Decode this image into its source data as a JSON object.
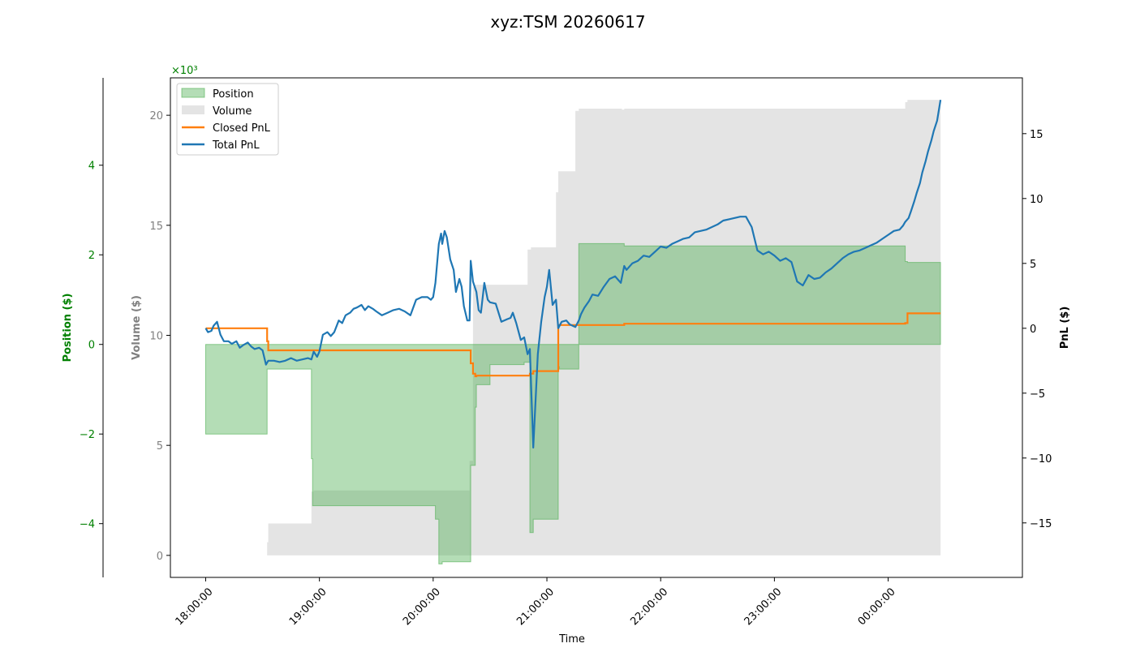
{
  "chart_data": {
    "type": "area",
    "title": "xyz:TSM 20260617",
    "xlabel": "Time",
    "x_ticks": [
      "18:00:00",
      "19:00:00",
      "20:00:00",
      "21:00:00",
      "22:00:00",
      "23:00:00",
      "00:00:00"
    ],
    "x_tick_hours": [
      18,
      19,
      20,
      21,
      22,
      23,
      24
    ],
    "x_range_hours": [
      17.69,
      25.18
    ],
    "axes": {
      "position": {
        "label": "Position ($)",
        "multiplier": "×10³",
        "ylim": [
          -5.2,
          5.95
        ],
        "ticks": [
          -4,
          -2,
          0,
          2,
          4
        ],
        "tick_labels": [
          "−4",
          "−2",
          "0",
          "2",
          "4"
        ],
        "color": "#008000"
      },
      "volume": {
        "label": "Volume ($)",
        "ylim": [
          -1,
          21.7
        ],
        "ticks": [
          0,
          5,
          10,
          15,
          20
        ],
        "tick_labels": [
          "0",
          "5",
          "10",
          "15",
          "20"
        ],
        "color": "#808080"
      },
      "pnl": {
        "label": "PnL ($)",
        "ylim": [
          -19.2,
          19.3
        ],
        "ticks": [
          -15,
          -10,
          -5,
          0,
          5,
          10,
          15
        ],
        "tick_labels": [
          "−15",
          "−10",
          "−5",
          "0",
          "5",
          "10",
          "15"
        ],
        "color": "#000000"
      }
    },
    "legend": {
      "placement": "upper-left",
      "entries": [
        "Position",
        "Volume",
        "Closed PnL",
        "Total PnL"
      ]
    },
    "series": [
      {
        "name": "Position",
        "axis": "position",
        "kind": "area",
        "color": "#4caf50",
        "x_hours": [
          18.0,
          18.54,
          18.54,
          18.93,
          18.93,
          18.94,
          18.94,
          20.02,
          20.02,
          20.05,
          20.05,
          20.08,
          20.08,
          20.33,
          20.33,
          20.37,
          20.37,
          20.38,
          20.38,
          20.5,
          20.5,
          20.8,
          20.8,
          20.85,
          20.85,
          20.88,
          20.88,
          21.1,
          21.1,
          21.11,
          21.11,
          21.28,
          21.28,
          21.68,
          21.68,
          24.15,
          24.15,
          24.17,
          24.17,
          24.46
        ],
        "y": [
          -2.0,
          -2.0,
          -0.55,
          -0.55,
          -2.55,
          -2.55,
          -3.6,
          -3.6,
          -3.9,
          -3.9,
          -4.9,
          -4.9,
          -4.85,
          -4.85,
          -2.7,
          -2.7,
          -1.4,
          -1.4,
          -0.9,
          -0.9,
          -0.45,
          -0.45,
          -0.4,
          -0.4,
          -4.2,
          -4.2,
          -3.9,
          -3.9,
          -0.5,
          -0.5,
          -0.55,
          -0.55,
          2.25,
          2.25,
          2.2,
          2.2,
          1.85,
          1.85,
          1.83,
          1.83
        ]
      },
      {
        "name": "Volume",
        "axis": "volume",
        "kind": "area",
        "color": "#d8d8d8",
        "x_hours": [
          18.0,
          18.54,
          18.54,
          18.55,
          18.55,
          18.93,
          18.93,
          18.95,
          18.95,
          20.32,
          20.32,
          20.35,
          20.35,
          20.37,
          20.37,
          20.83,
          20.83,
          20.86,
          20.86,
          21.08,
          21.08,
          21.1,
          21.1,
          21.25,
          21.25,
          21.28,
          21.28,
          21.66,
          21.66,
          21.68,
          21.68,
          24.15,
          24.15,
          24.17,
          24.17,
          24.46
        ],
        "y": [
          0,
          0,
          0.6,
          0.6,
          1.45,
          1.45,
          2.9,
          2.9,
          2.95,
          2.95,
          4.3,
          4.3,
          12.2,
          12.2,
          12.3,
          12.3,
          13.9,
          13.9,
          14.0,
          14.0,
          16.5,
          16.5,
          17.45,
          17.45,
          20.2,
          20.2,
          20.3,
          20.3,
          20.25,
          20.25,
          20.3,
          20.3,
          20.6,
          20.6,
          20.7,
          20.7
        ]
      },
      {
        "name": "Closed PnL",
        "axis": "pnl",
        "kind": "line",
        "color": "#ff7f0e",
        "x_hours": [
          18.0,
          18.54,
          18.54,
          18.55,
          18.55,
          20.33,
          20.33,
          20.35,
          20.35,
          20.37,
          20.37,
          20.38,
          20.38,
          20.85,
          20.85,
          20.88,
          20.88,
          21.1,
          21.1,
          21.68,
          21.68,
          24.15,
          24.15,
          24.17,
          24.17,
          24.46
        ],
        "y": [
          0,
          0,
          -1.0,
          -1.0,
          -1.7,
          -1.7,
          -2.7,
          -2.7,
          -3.5,
          -3.5,
          -3.7,
          -3.7,
          -3.65,
          -3.65,
          -3.5,
          -3.5,
          -3.3,
          -3.3,
          0.25,
          0.25,
          0.35,
          0.35,
          0.4,
          0.4,
          1.15,
          1.15
        ]
      },
      {
        "name": "Total PnL",
        "axis": "pnl",
        "kind": "line",
        "color": "#1f77b4",
        "x_hours": [
          18.0,
          18.02,
          18.05,
          18.07,
          18.1,
          18.13,
          18.16,
          18.2,
          18.23,
          18.27,
          18.3,
          18.33,
          18.37,
          18.4,
          18.43,
          18.47,
          18.5,
          18.53,
          18.55,
          18.6,
          18.65,
          18.7,
          18.75,
          18.8,
          18.85,
          18.9,
          18.93,
          18.95,
          18.98,
          19.0,
          19.03,
          19.07,
          19.1,
          19.13,
          19.17,
          19.2,
          19.23,
          19.27,
          19.3,
          19.33,
          19.37,
          19.4,
          19.43,
          19.47,
          19.5,
          19.55,
          19.6,
          19.65,
          19.7,
          19.75,
          19.8,
          19.85,
          19.9,
          19.95,
          19.98,
          20.0,
          20.02,
          20.03,
          20.05,
          20.07,
          20.08,
          20.1,
          20.12,
          20.15,
          20.18,
          20.2,
          20.23,
          20.25,
          20.27,
          20.3,
          20.32,
          20.33,
          20.35,
          20.38,
          20.4,
          20.42,
          20.45,
          20.48,
          20.5,
          20.55,
          20.6,
          20.65,
          20.68,
          20.7,
          20.73,
          20.77,
          20.8,
          20.83,
          20.85,
          20.88,
          20.92,
          20.95,
          20.98,
          21.0,
          21.02,
          21.05,
          21.08,
          21.1,
          21.13,
          21.17,
          21.2,
          21.25,
          21.28,
          21.3,
          21.33,
          21.37,
          21.4,
          21.45,
          21.5,
          21.55,
          21.6,
          21.65,
          21.68,
          21.7,
          21.75,
          21.8,
          21.85,
          21.9,
          21.95,
          22.0,
          22.05,
          22.1,
          22.15,
          22.2,
          22.25,
          22.3,
          22.35,
          22.4,
          22.45,
          22.5,
          22.55,
          22.6,
          22.65,
          22.7,
          22.75,
          22.8,
          22.85,
          22.9,
          22.95,
          23.0,
          23.05,
          23.1,
          23.15,
          23.2,
          23.25,
          23.3,
          23.35,
          23.4,
          23.45,
          23.5,
          23.55,
          23.6,
          23.65,
          23.7,
          23.75,
          23.8,
          23.85,
          23.9,
          23.95,
          24.0,
          24.05,
          24.1,
          24.13,
          24.15,
          24.18,
          24.2,
          24.23,
          24.25,
          24.28,
          24.3,
          24.33,
          24.35,
          24.38,
          24.4,
          24.43,
          24.46
        ],
        "y": [
          0,
          -0.3,
          -0.2,
          0.2,
          0.5,
          -0.5,
          -1.0,
          -1.0,
          -1.2,
          -1.0,
          -1.5,
          -1.3,
          -1.1,
          -1.4,
          -1.6,
          -1.5,
          -1.7,
          -2.8,
          -2.5,
          -2.5,
          -2.6,
          -2.5,
          -2.3,
          -2.5,
          -2.4,
          -2.3,
          -2.4,
          -1.8,
          -2.2,
          -1.8,
          -0.5,
          -0.3,
          -0.6,
          -0.3,
          0.6,
          0.4,
          1.0,
          1.2,
          1.5,
          1.6,
          1.8,
          1.4,
          1.7,
          1.5,
          1.3,
          1.0,
          1.2,
          1.4,
          1.5,
          1.3,
          1.0,
          2.2,
          2.4,
          2.4,
          2.2,
          2.4,
          3.5,
          4.5,
          6.5,
          7.3,
          6.5,
          7.5,
          7.0,
          5.3,
          4.5,
          2.8,
          3.8,
          3.2,
          1.7,
          0.6,
          0.6,
          5.2,
          3.6,
          2.8,
          1.4,
          1.2,
          3.5,
          2.2,
          2.0,
          1.9,
          0.5,
          0.7,
          0.8,
          1.2,
          0.4,
          -0.9,
          -0.7,
          -2.0,
          -1.6,
          -9.2,
          -2.0,
          0.5,
          2.4,
          3.2,
          4.5,
          1.8,
          2.2,
          0.0,
          0.5,
          0.6,
          0.3,
          0.1,
          0.6,
          1.1,
          1.6,
          2.1,
          2.6,
          2.5,
          3.2,
          3.8,
          4.0,
          3.5,
          4.8,
          4.5,
          5.0,
          5.2,
          5.6,
          5.5,
          5.9,
          6.3,
          6.2,
          6.5,
          6.7,
          6.9,
          7.0,
          7.4,
          7.5,
          7.6,
          7.8,
          8.0,
          8.3,
          8.4,
          8.5,
          8.6,
          8.6,
          7.8,
          6.0,
          5.7,
          5.9,
          5.6,
          5.2,
          5.4,
          5.1,
          3.6,
          3.3,
          4.1,
          3.8,
          3.9,
          4.3,
          4.6,
          5.0,
          5.4,
          5.7,
          5.9,
          6.0,
          6.2,
          6.4,
          6.6,
          6.9,
          7.2,
          7.5,
          7.6,
          7.9,
          8.2,
          8.5,
          9.0,
          9.8,
          10.4,
          11.2,
          12.0,
          12.9,
          13.6,
          14.5,
          15.2,
          16.0,
          17.6
        ]
      }
    ]
  }
}
